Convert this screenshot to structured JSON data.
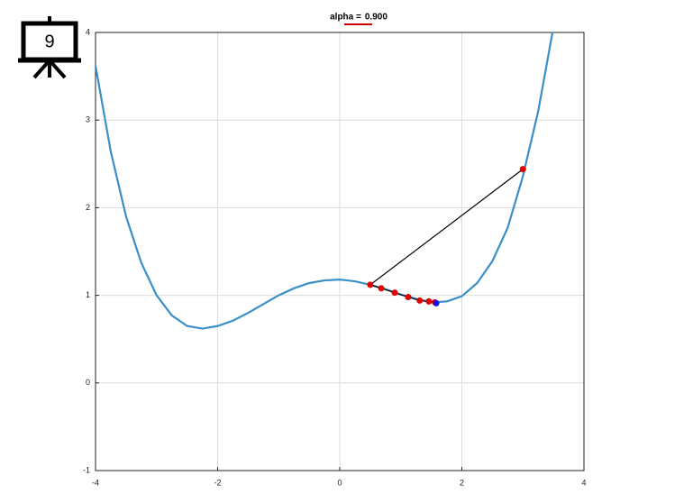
{
  "badge": "9",
  "chart_data": {
    "type": "line",
    "title": "alpha =",
    "title_value": "0.900",
    "xlim": [
      -4,
      4
    ],
    "ylim": [
      -1,
      4
    ],
    "xticks": [
      -4,
      -2,
      0,
      2,
      4
    ],
    "yticks": [
      -1,
      0,
      1,
      2,
      3,
      4
    ],
    "grid": true,
    "series": [
      {
        "color": "#3a8fc7",
        "markers": false,
        "x": [
          -4,
          -3.75,
          -3.5,
          -3.25,
          -3,
          -2.75,
          -2.5,
          -2.25,
          -2,
          -1.75,
          -1.5,
          -1.25,
          -1,
          -0.75,
          -0.5,
          -0.25,
          0,
          0.25,
          0.5,
          0.75,
          1,
          1.25,
          1.5,
          1.75,
          2,
          2.25,
          2.5,
          2.75,
          3,
          3.25,
          3.5
        ],
        "values": [
          3.62,
          2.64,
          1.9,
          1.37,
          1.0,
          0.77,
          0.65,
          0.62,
          0.65,
          0.71,
          0.8,
          0.9,
          1.0,
          1.08,
          1.14,
          1.17,
          1.18,
          1.16,
          1.12,
          1.07,
          1.01,
          0.96,
          0.92,
          0.93,
          0.99,
          1.14,
          1.39,
          1.77,
          2.36,
          3.1,
          4.06
        ]
      },
      {
        "color": "#000000",
        "marker_color": "#e00000",
        "markers": true,
        "x": [
          3.0,
          0.5,
          0.68,
          0.9,
          1.12,
          1.31,
          1.46,
          1.56
        ],
        "values": [
          2.44,
          1.12,
          1.08,
          1.03,
          0.98,
          0.94,
          0.93,
          0.92
        ]
      },
      {
        "color": "#1010e0",
        "marker_color": "#1010e0",
        "markers": true,
        "x": [
          1.58
        ],
        "values": [
          0.91
        ]
      }
    ]
  }
}
